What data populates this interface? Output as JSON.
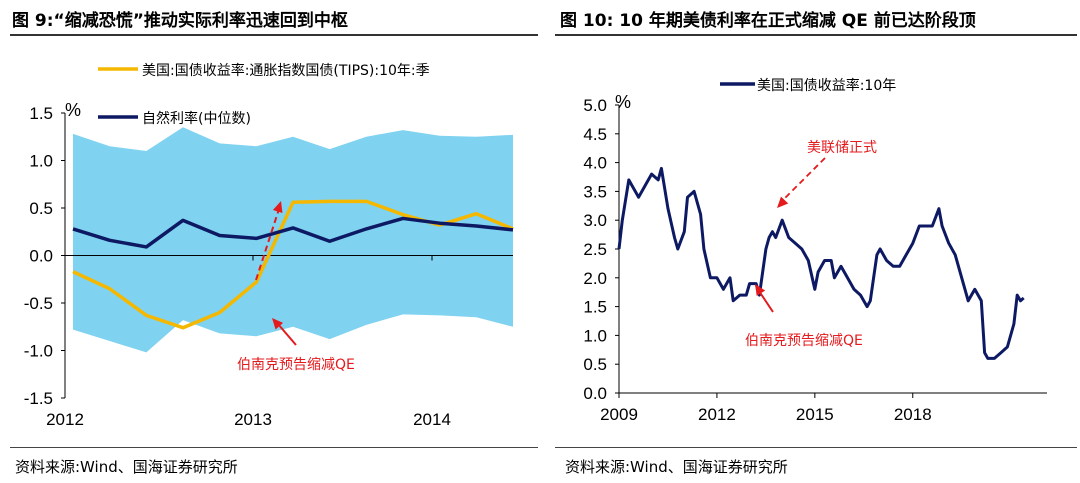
{
  "left": {
    "title": "图 9:“缩减恐慌”推动实际利率迅速回到中枢",
    "source": "资料来源:Wind、国海证券研究所",
    "unit": "%",
    "annotation": "伯南克预告缩减QE"
  },
  "right": {
    "title": "图 10:  10 年期美债利率在正式缩减 QE 前已达阶段顶",
    "source": "资料来源:Wind、国海证券研究所",
    "unit": "%",
    "annotation_top": "美联储正式",
    "annotation_bottom": "伯南克预告缩减QE"
  },
  "chart_data": [
    {
      "type": "line",
      "ylim": [
        -1.5,
        1.5
      ],
      "yticks": [
        "-1.5",
        "-1.0",
        "-0.5",
        "0.0",
        "0.5",
        "1.0",
        "1.5"
      ],
      "xticks": [
        "2012",
        "2013",
        "2014"
      ],
      "colors": {
        "tips": "#F5B800",
        "natural": "#0D1A63",
        "band": "#7FD2F0",
        "arrow": "#E41A1C"
      },
      "band": {
        "upper": [
          1.28,
          1.15,
          1.1,
          1.35,
          1.18,
          1.15,
          1.25,
          1.12,
          1.25,
          1.32,
          1.26,
          1.25,
          1.27
        ],
        "lower": [
          -0.78,
          -0.9,
          -1.02,
          -0.68,
          -0.82,
          -0.85,
          -0.75,
          -0.88,
          -0.73,
          -0.62,
          -0.63,
          -0.65,
          -0.75
        ]
      },
      "series": [
        {
          "name": "美国:国债收益率:通胀指数国债(TIPS):10年:季",
          "values": [
            -0.17,
            -0.35,
            -0.63,
            -0.76,
            -0.6,
            -0.28,
            0.56,
            0.57,
            0.57,
            0.43,
            0.32,
            0.44,
            0.28
          ]
        },
        {
          "name": "自然利率(中位数)",
          "values": [
            0.28,
            0.16,
            0.09,
            0.37,
            0.21,
            0.18,
            0.29,
            0.15,
            0.28,
            0.39,
            0.34,
            0.31,
            0.27
          ]
        }
      ]
    },
    {
      "type": "line",
      "ylim": [
        0,
        5
      ],
      "yticks": [
        "0.0",
        "0.5",
        "1.0",
        "1.5",
        "2.0",
        "2.5",
        "3.0",
        "3.5",
        "4.0",
        "4.5",
        "5.0"
      ],
      "xticks": [
        "2009",
        "2012",
        "2015",
        "2018"
      ],
      "colors": {
        "line": "#0D1A63",
        "arrow": "#E41A1C"
      },
      "series": [
        {
          "name": "美国:国债收益率:10年",
          "x": [
            2009.0,
            2009.1,
            2009.3,
            2009.5,
            2009.6,
            2009.8,
            2010.0,
            2010.2,
            2010.3,
            2010.5,
            2010.7,
            2010.8,
            2011.0,
            2011.1,
            2011.3,
            2011.5,
            2011.6,
            2011.8,
            2012.0,
            2012.2,
            2012.4,
            2012.5,
            2012.7,
            2012.9,
            2013.0,
            2013.2,
            2013.3,
            2013.5,
            2013.6,
            2013.7,
            2013.8,
            2014.0,
            2014.2,
            2014.4,
            2014.6,
            2014.8,
            2015.0,
            2015.1,
            2015.3,
            2015.5,
            2015.6,
            2015.8,
            2016.0,
            2016.2,
            2016.4,
            2016.6,
            2016.7,
            2016.9,
            2017.0,
            2017.2,
            2017.4,
            2017.6,
            2017.8,
            2018.0,
            2018.2,
            2018.4,
            2018.6,
            2018.8,
            2018.9,
            2019.1,
            2019.3,
            2019.5,
            2019.7,
            2019.9,
            2020.1,
            2020.2,
            2020.3,
            2020.5,
            2020.7,
            2020.9,
            2021.1,
            2021.2,
            2021.3,
            2021.4
          ],
          "values": [
            2.5,
            3.0,
            3.7,
            3.5,
            3.4,
            3.6,
            3.8,
            3.7,
            3.9,
            3.2,
            2.7,
            2.5,
            2.8,
            3.4,
            3.5,
            3.1,
            2.5,
            2.0,
            2.0,
            1.8,
            2.0,
            1.6,
            1.7,
            1.7,
            1.9,
            1.9,
            1.7,
            2.5,
            2.7,
            2.8,
            2.7,
            3.0,
            2.7,
            2.6,
            2.5,
            2.3,
            1.8,
            2.1,
            2.3,
            2.3,
            2.0,
            2.2,
            2.0,
            1.8,
            1.7,
            1.5,
            1.6,
            2.4,
            2.5,
            2.3,
            2.2,
            2.2,
            2.4,
            2.6,
            2.9,
            2.9,
            2.9,
            3.2,
            2.9,
            2.6,
            2.4,
            2.0,
            1.6,
            1.8,
            1.6,
            0.7,
            0.6,
            0.6,
            0.7,
            0.8,
            1.2,
            1.7,
            1.6,
            1.65
          ]
        }
      ]
    }
  ]
}
